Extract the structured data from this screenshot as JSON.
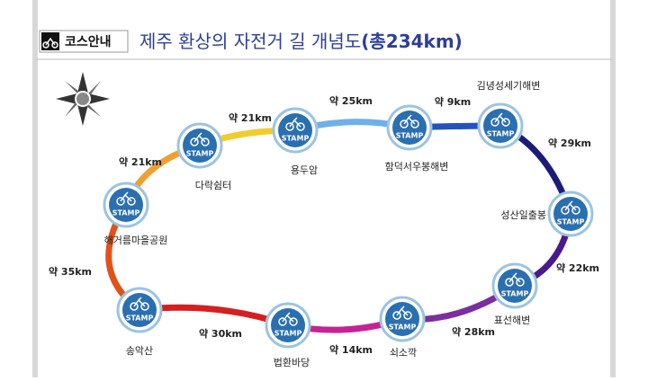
{
  "header": {
    "badge": "코스안내",
    "title": "제주 환상의 자전거 길 개념도",
    "total": "(총234km)"
  },
  "stamp_text": "STAMP",
  "nodes": [
    {
      "label": "용두암"
    },
    {
      "label": "함덕서우봉해변"
    },
    {
      "label": "김녕성세기해변"
    },
    {
      "label": "성산일출봉"
    },
    {
      "label": "표선해변"
    },
    {
      "label": "쇠소깍"
    },
    {
      "label": "법환바당"
    },
    {
      "label": "송악산"
    },
    {
      "label": "해거름마을공원"
    },
    {
      "label": "다락쉼터"
    }
  ],
  "segments": [
    {
      "distance": "약 25km",
      "color": "#6fb0e8"
    },
    {
      "distance": "약 9km",
      "color": "#2452c0"
    },
    {
      "distance": "약 29km",
      "color": "#1c1c78"
    },
    {
      "distance": "약 22km",
      "color": "#4a1a8c"
    },
    {
      "distance": "약 28km",
      "color": "#7a2ea0"
    },
    {
      "distance": "약 14km",
      "color": "#c42396"
    },
    {
      "distance": "약 30km",
      "color": "#d42020"
    },
    {
      "distance": "약 35km",
      "color": "#e0521c"
    },
    {
      "distance": "약 21km",
      "color": "#f0a030"
    },
    {
      "distance": "약 21km",
      "color": "#f0cc30"
    }
  ]
}
